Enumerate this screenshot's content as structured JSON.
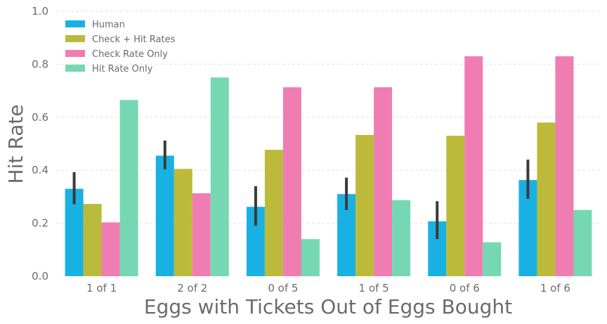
{
  "chart_data": {
    "type": "bar",
    "title": "",
    "xlabel": "Eggs with Tickets Out of Eggs Bought",
    "ylabel": "Hit Rate",
    "ylim": [
      0,
      1.0
    ],
    "yticks": [
      "0.0",
      "0.2",
      "0.4",
      "0.6",
      "0.8",
      "1.0"
    ],
    "ytick_values": [
      0,
      0.2,
      0.4,
      0.6,
      0.8,
      1.0
    ],
    "grid": true,
    "legend_position": "top-left",
    "categories": [
      "1 of 1",
      "2 of 2",
      "0 of 5",
      "1 of 5",
      "0 of 6",
      "1 of 6"
    ],
    "series": [
      {
        "name": "Human",
        "color": "#00a8e0",
        "values": [
          0.33,
          0.455,
          0.262,
          0.31,
          0.207,
          0.363
        ],
        "error_low": [
          0.272,
          0.403,
          0.19,
          0.25,
          0.14,
          0.292
        ],
        "error_high": [
          0.393,
          0.512,
          0.34,
          0.372,
          0.283,
          0.44
        ]
      },
      {
        "name": "Check + Hit Rates",
        "color": "#b5b325",
        "values": [
          0.273,
          0.405,
          0.477,
          0.533,
          0.53,
          0.58
        ]
      },
      {
        "name": "Check Rate Only",
        "color": "#ee6fa9",
        "values": [
          0.203,
          0.313,
          0.713,
          0.713,
          0.83,
          0.83
        ]
      },
      {
        "name": "Hit Rate Only",
        "color": "#66d4aa",
        "values": [
          0.665,
          0.75,
          0.14,
          0.287,
          0.128,
          0.25
        ]
      }
    ]
  }
}
